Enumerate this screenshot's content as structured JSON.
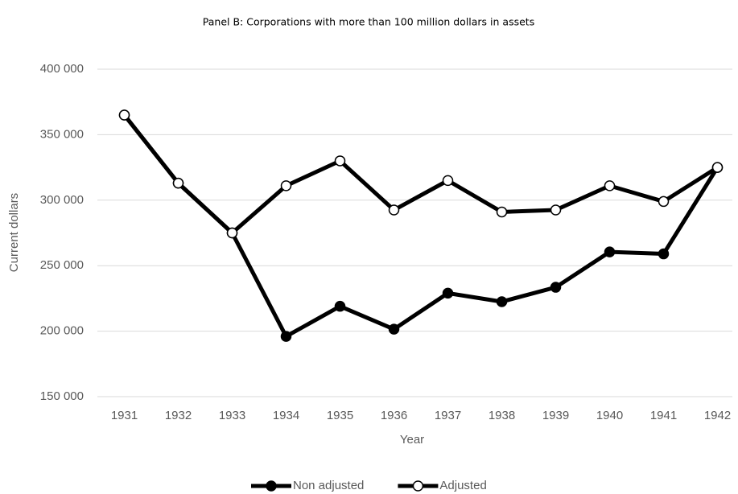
{
  "chart_data": {
    "type": "line",
    "title": "Panel B: Corporations with more than 100 million dollars in assets",
    "x_label": "Year",
    "y_label": "Current dollars",
    "categories": [
      "1931",
      "1932",
      "1933",
      "1934",
      "1935",
      "1936",
      "1937",
      "1938",
      "1939",
      "1940",
      "1941",
      "1942"
    ],
    "series": [
      {
        "name": "Non adjusted",
        "color": "#000000",
        "marker_face": "#000000",
        "values": [
          365000,
          313000,
          275000,
          196000,
          219000,
          201500,
          229000,
          222500,
          233500,
          260500,
          259000,
          325000
        ]
      },
      {
        "name": "Adjusted",
        "color": "#000000",
        "marker_face": "#ffffff",
        "values": [
          365000,
          313000,
          275000,
          311000,
          330000,
          292500,
          315000,
          291000,
          292500,
          311000,
          299000,
          325000
        ]
      }
    ],
    "ylim": [
      150000,
      400000
    ],
    "yticks": [
      {
        "value": 150000,
        "label": "150 000"
      },
      {
        "value": 200000,
        "label": "200 000"
      },
      {
        "value": 250000,
        "label": "250 000"
      },
      {
        "value": 300000,
        "label": "300 000"
      },
      {
        "value": 350000,
        "label": "350 000"
      },
      {
        "value": 400000,
        "label": "400 000"
      }
    ],
    "grid": true,
    "legend": "bottom"
  }
}
